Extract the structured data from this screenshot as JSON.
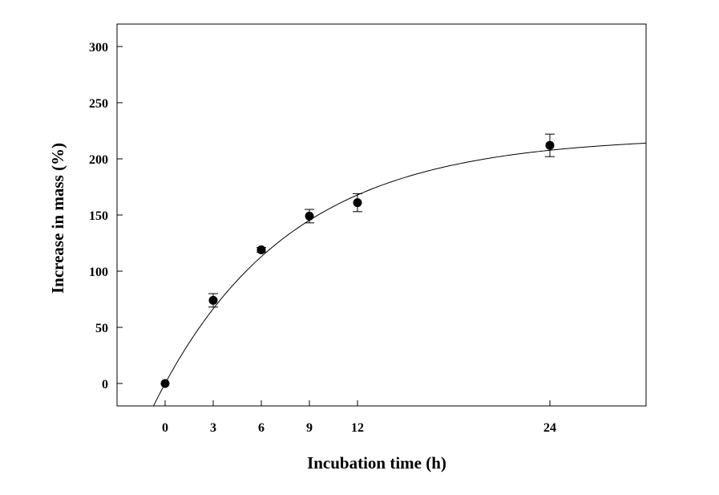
{
  "chart_data": {
    "type": "scatter",
    "xlabel": "Incubation time  (h)",
    "ylabel": "Increase in mass (%)",
    "xlim": [
      -3,
      30
    ],
    "ylim": [
      -20,
      320
    ],
    "x_ticks": [
      0,
      3,
      6,
      9,
      12,
      24
    ],
    "y_ticks": [
      0,
      50,
      100,
      150,
      200,
      250,
      300
    ],
    "grid": false,
    "legend": "none",
    "points": [
      {
        "x": 0,
        "y": 0,
        "err": 0
      },
      {
        "x": 3,
        "y": 74,
        "err": 6
      },
      {
        "x": 6,
        "y": 119,
        "err": 2
      },
      {
        "x": 9,
        "y": 149,
        "err": 6
      },
      {
        "x": 12,
        "y": 161,
        "err": 8
      },
      {
        "x": 24,
        "y": 212,
        "err": 10
      }
    ],
    "fit_curve": {
      "model": "exponential_rise",
      "a": 220,
      "k": 0.12
    }
  }
}
